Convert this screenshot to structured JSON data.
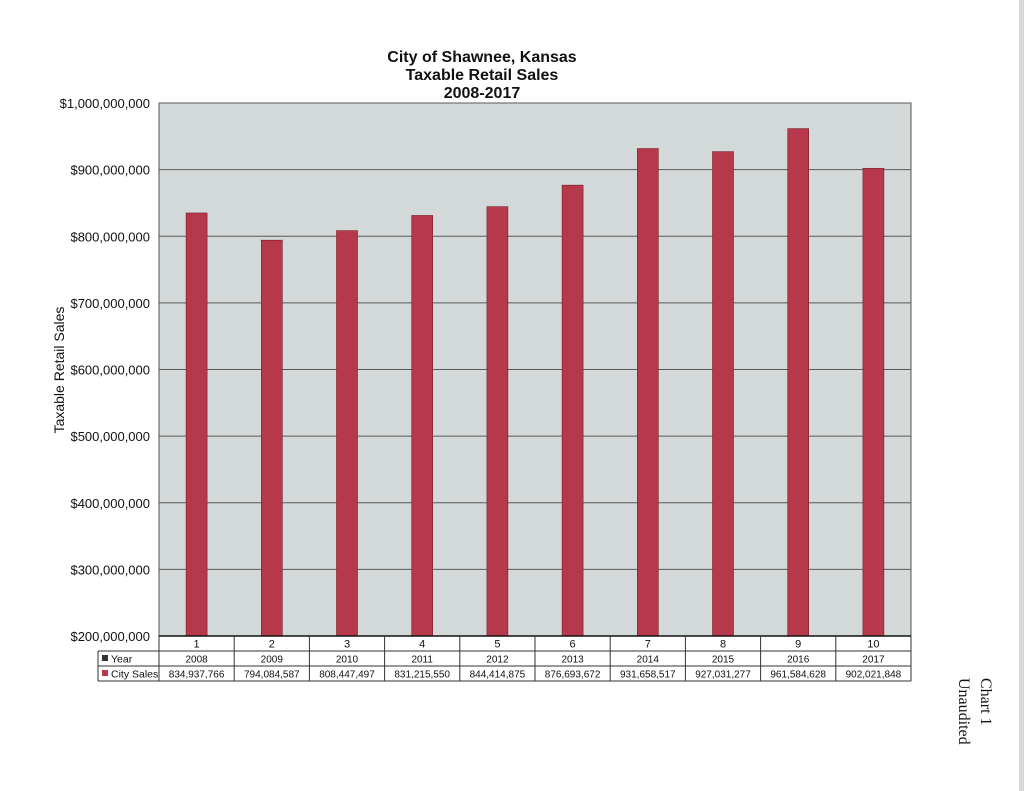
{
  "chart_data": {
    "type": "bar",
    "title_lines": [
      "City of Shawnee, Kansas",
      "Taxable Retail Sales",
      "2008-2017"
    ],
    "ylabel": "Taxable Retail Sales",
    "ylim": [
      200000000,
      1000000000
    ],
    "yticks": [
      200000000,
      300000000,
      400000000,
      500000000,
      600000000,
      700000000,
      800000000,
      900000000,
      1000000000
    ],
    "ytick_labels": [
      "$200,000,000",
      "$300,000,000",
      "$400,000,000",
      "$500,000,000",
      "$600,000,000",
      "$700,000,000",
      "$800,000,000",
      "$900,000,000",
      "$1,000,000,000"
    ],
    "categories": [
      "1",
      "2",
      "3",
      "4",
      "5",
      "6",
      "7",
      "8",
      "9",
      "10"
    ],
    "grid": true,
    "colors": {
      "bar": "#b5384b",
      "plot_bg": "#d3d8d8",
      "grid": "#5a5a5a"
    },
    "data_table": {
      "rows": [
        {
          "label": "Year",
          "marker_color": "#333333",
          "values": [
            "2008",
            "2009",
            "2010",
            "2011",
            "2012",
            "2013",
            "2014",
            "2015",
            "2016",
            "2017"
          ]
        },
        {
          "label": "City Sales",
          "marker_color": "#b5384b",
          "values": [
            "834,937,766",
            "794,084,587",
            "808,447,497",
            "831,215,550",
            "844,414,875",
            "876,693,672",
            "931,658,517",
            "927,031,277",
            "961,584,628",
            "902,021,848"
          ]
        }
      ]
    },
    "series": [
      {
        "values": [
          834937766,
          794084587,
          808447497,
          831215550,
          844414875,
          876693672,
          931658517,
          927031277,
          961584628,
          902021848
        ]
      }
    ]
  },
  "annotation": {
    "lines": [
      "Chart 1",
      "Unaudited"
    ]
  }
}
